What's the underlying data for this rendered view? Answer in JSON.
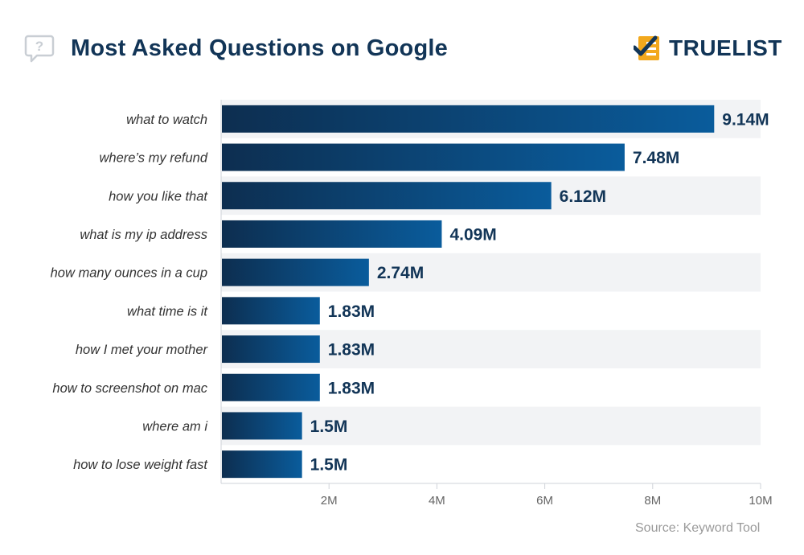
{
  "header": {
    "title": "Most Asked Questions on Google",
    "brand": "TRUELIST",
    "question_icon": "question-bubble-icon",
    "brand_icon": "checklist-logo-icon"
  },
  "source": "Source: Keyword Tool",
  "colors": {
    "title": "#123557",
    "bar_start": "#0d2e50",
    "bar_end": "#0a5c9c",
    "band": "#f2f3f5",
    "brand_accent": "#f2a81d",
    "axis_text": "#666666"
  },
  "chart_data": {
    "type": "bar",
    "orientation": "horizontal",
    "title": "Most Asked Questions on Google",
    "categories": [
      "what to watch",
      "where’s my refund",
      "how you like that",
      "what is my ip address",
      "how many ounces in a cup",
      "what time is it",
      "how I met your mother",
      "how to screenshot on mac",
      "where am i",
      "how to lose weight fast"
    ],
    "values": [
      9.14,
      7.48,
      6.12,
      4.09,
      2.74,
      1.83,
      1.83,
      1.83,
      1.5,
      1.5
    ],
    "value_labels": [
      "9.14M",
      "7.48M",
      "6.12M",
      "4.09M",
      "2.74M",
      "1.83M",
      "1.83M",
      "1.83M",
      "1.5M",
      "1.5M"
    ],
    "xlim": [
      0,
      10
    ],
    "x_ticks": [
      2,
      4,
      6,
      8,
      10
    ],
    "x_tick_labels": [
      "2M",
      "4M",
      "6M",
      "8M",
      "10M"
    ],
    "xlabel": "",
    "ylabel": "",
    "grid": false,
    "legend": "none"
  }
}
